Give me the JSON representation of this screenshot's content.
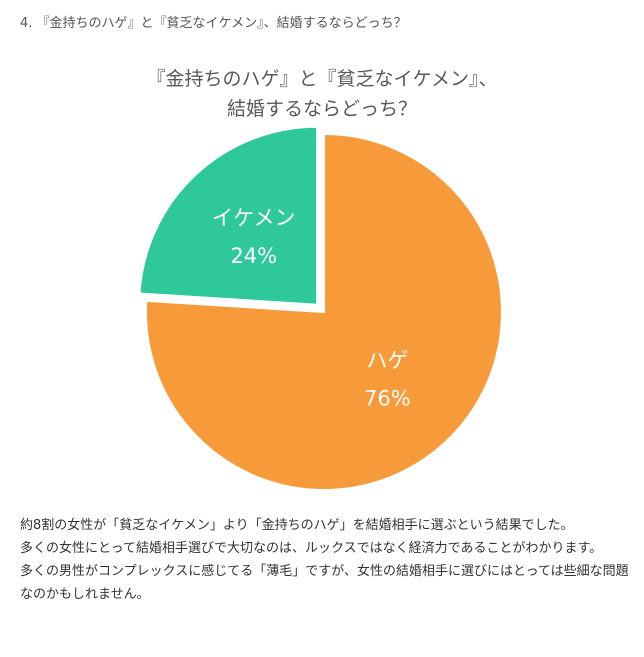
{
  "article": {
    "heading": "4. 『金持ちのハゲ』と『貧乏なイケメン』、結婚するならどっち？"
  },
  "chart_data": {
    "type": "pie",
    "title_line1": "『金持ちのハゲ』と『貧乏なイケメン』、",
    "title_line2": "結婚するならどっち？",
    "categories": [
      "ハゲ",
      "イケメン"
    ],
    "values": [
      76,
      24
    ],
    "labels": [
      "76%",
      "24%"
    ],
    "colors": [
      "#F79A3A",
      "#2EC89A"
    ],
    "exploded": "イケメン"
  },
  "paragraphs": [
    "約8割の女性が「貧乏なイケメン」より「金持ちのハゲ」を結婚相手に選ぶという結果でした。",
    "多くの女性にとって結婚相手選びで大切なのは、ルックスではなく経済力であることがわかります。",
    "多くの男性がコンプレックスに感じてる「薄毛」ですが、女性の結婚相手に選びにはとっては些細な問題なのかもしれません。"
  ]
}
